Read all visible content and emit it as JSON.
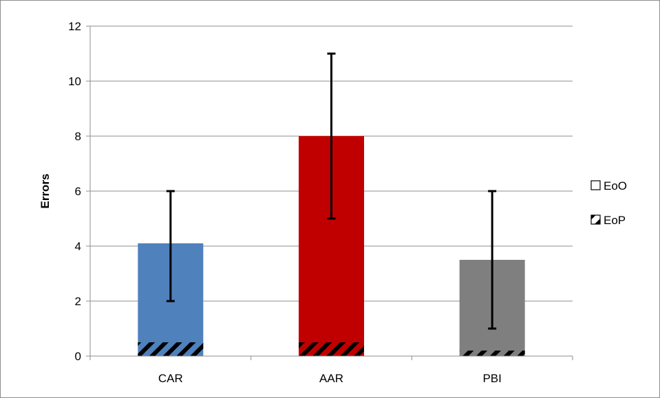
{
  "chart_data": {
    "type": "bar",
    "title": "",
    "xlabel": "",
    "ylabel": "Errors",
    "ylim": [
      0,
      12
    ],
    "ytick_step": 2,
    "grid": true,
    "legend_position": "right",
    "categories": [
      "CAR",
      "AAR",
      "PBI"
    ],
    "series": [
      {
        "name": "EoO",
        "values": [
          4.1,
          8.0,
          3.5
        ],
        "error_low": [
          2,
          5,
          1
        ],
        "error_high": [
          6,
          11,
          6
        ],
        "colors": [
          "#4F81BD",
          "#C00000",
          "#7F7F7F"
        ]
      },
      {
        "name": "EoP",
        "values": [
          0.5,
          0.5,
          0.2
        ],
        "pattern": "diagonal-hatch"
      }
    ]
  }
}
